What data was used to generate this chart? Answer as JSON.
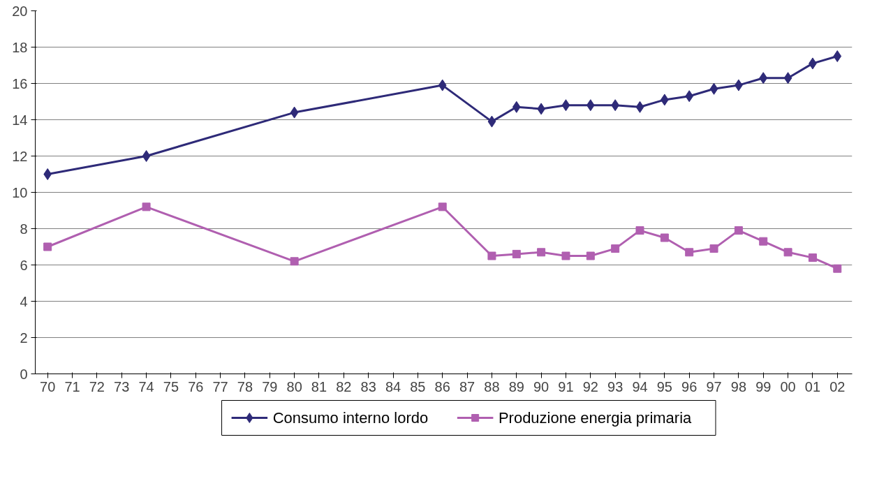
{
  "chart_data": {
    "type": "line",
    "x": [
      1970,
      1974,
      1980,
      1986,
      1988,
      1989,
      1990,
      1991,
      1992,
      1993,
      1994,
      1995,
      1996,
      1997,
      1998,
      1999,
      2000,
      2001,
      2002
    ],
    "series": [
      {
        "name": "Consumo interno lordo",
        "color": "#2e2a78",
        "marker": "diamond",
        "values": [
          11.0,
          12.0,
          14.4,
          15.9,
          13.9,
          14.7,
          14.6,
          14.8,
          14.8,
          14.8,
          14.7,
          15.1,
          15.3,
          15.7,
          15.9,
          16.3,
          16.3,
          17.1,
          17.5
        ]
      },
      {
        "name": "Produzione energia primaria",
        "color": "#b05fb0",
        "marker": "square",
        "values": [
          7.0,
          9.2,
          6.2,
          9.2,
          6.5,
          6.6,
          6.7,
          6.5,
          6.5,
          6.9,
          7.9,
          7.5,
          6.7,
          6.9,
          7.9,
          7.3,
          6.7,
          6.4,
          5.8
        ]
      }
    ],
    "xlim": [
      1969.5,
      2002.6
    ],
    "xticks": [
      {
        "value": 1970,
        "label": "70"
      },
      {
        "value": 1971,
        "label": "71"
      },
      {
        "value": 1972,
        "label": "72"
      },
      {
        "value": 1973,
        "label": "73"
      },
      {
        "value": 1974,
        "label": "74"
      },
      {
        "value": 1975,
        "label": "75"
      },
      {
        "value": 1976,
        "label": "76"
      },
      {
        "value": 1977,
        "label": "77"
      },
      {
        "value": 1978,
        "label": "78"
      },
      {
        "value": 1979,
        "label": "79"
      },
      {
        "value": 1980,
        "label": "80"
      },
      {
        "value": 1981,
        "label": "81"
      },
      {
        "value": 1982,
        "label": "82"
      },
      {
        "value": 1983,
        "label": "83"
      },
      {
        "value": 1984,
        "label": "84"
      },
      {
        "value": 1985,
        "label": "85"
      },
      {
        "value": 1986,
        "label": "86"
      },
      {
        "value": 1987,
        "label": "87"
      },
      {
        "value": 1988,
        "label": "88"
      },
      {
        "value": 1989,
        "label": "89"
      },
      {
        "value": 1990,
        "label": "90"
      },
      {
        "value": 1991,
        "label": "91"
      },
      {
        "value": 1992,
        "label": "92"
      },
      {
        "value": 1993,
        "label": "93"
      },
      {
        "value": 1994,
        "label": "94"
      },
      {
        "value": 1995,
        "label": "95"
      },
      {
        "value": 1996,
        "label": "96"
      },
      {
        "value": 1997,
        "label": "97"
      },
      {
        "value": 1998,
        "label": "98"
      },
      {
        "value": 1999,
        "label": "99"
      },
      {
        "value": 2000,
        "label": "00"
      },
      {
        "value": 2001,
        "label": "01"
      },
      {
        "value": 2002,
        "label": "02"
      }
    ],
    "ylim": [
      0,
      20
    ],
    "yticks": [
      0,
      2,
      4,
      6,
      8,
      10,
      12,
      14,
      16,
      18,
      20
    ],
    "grid": "y",
    "legend": "bottom",
    "line_style": "solid"
  }
}
